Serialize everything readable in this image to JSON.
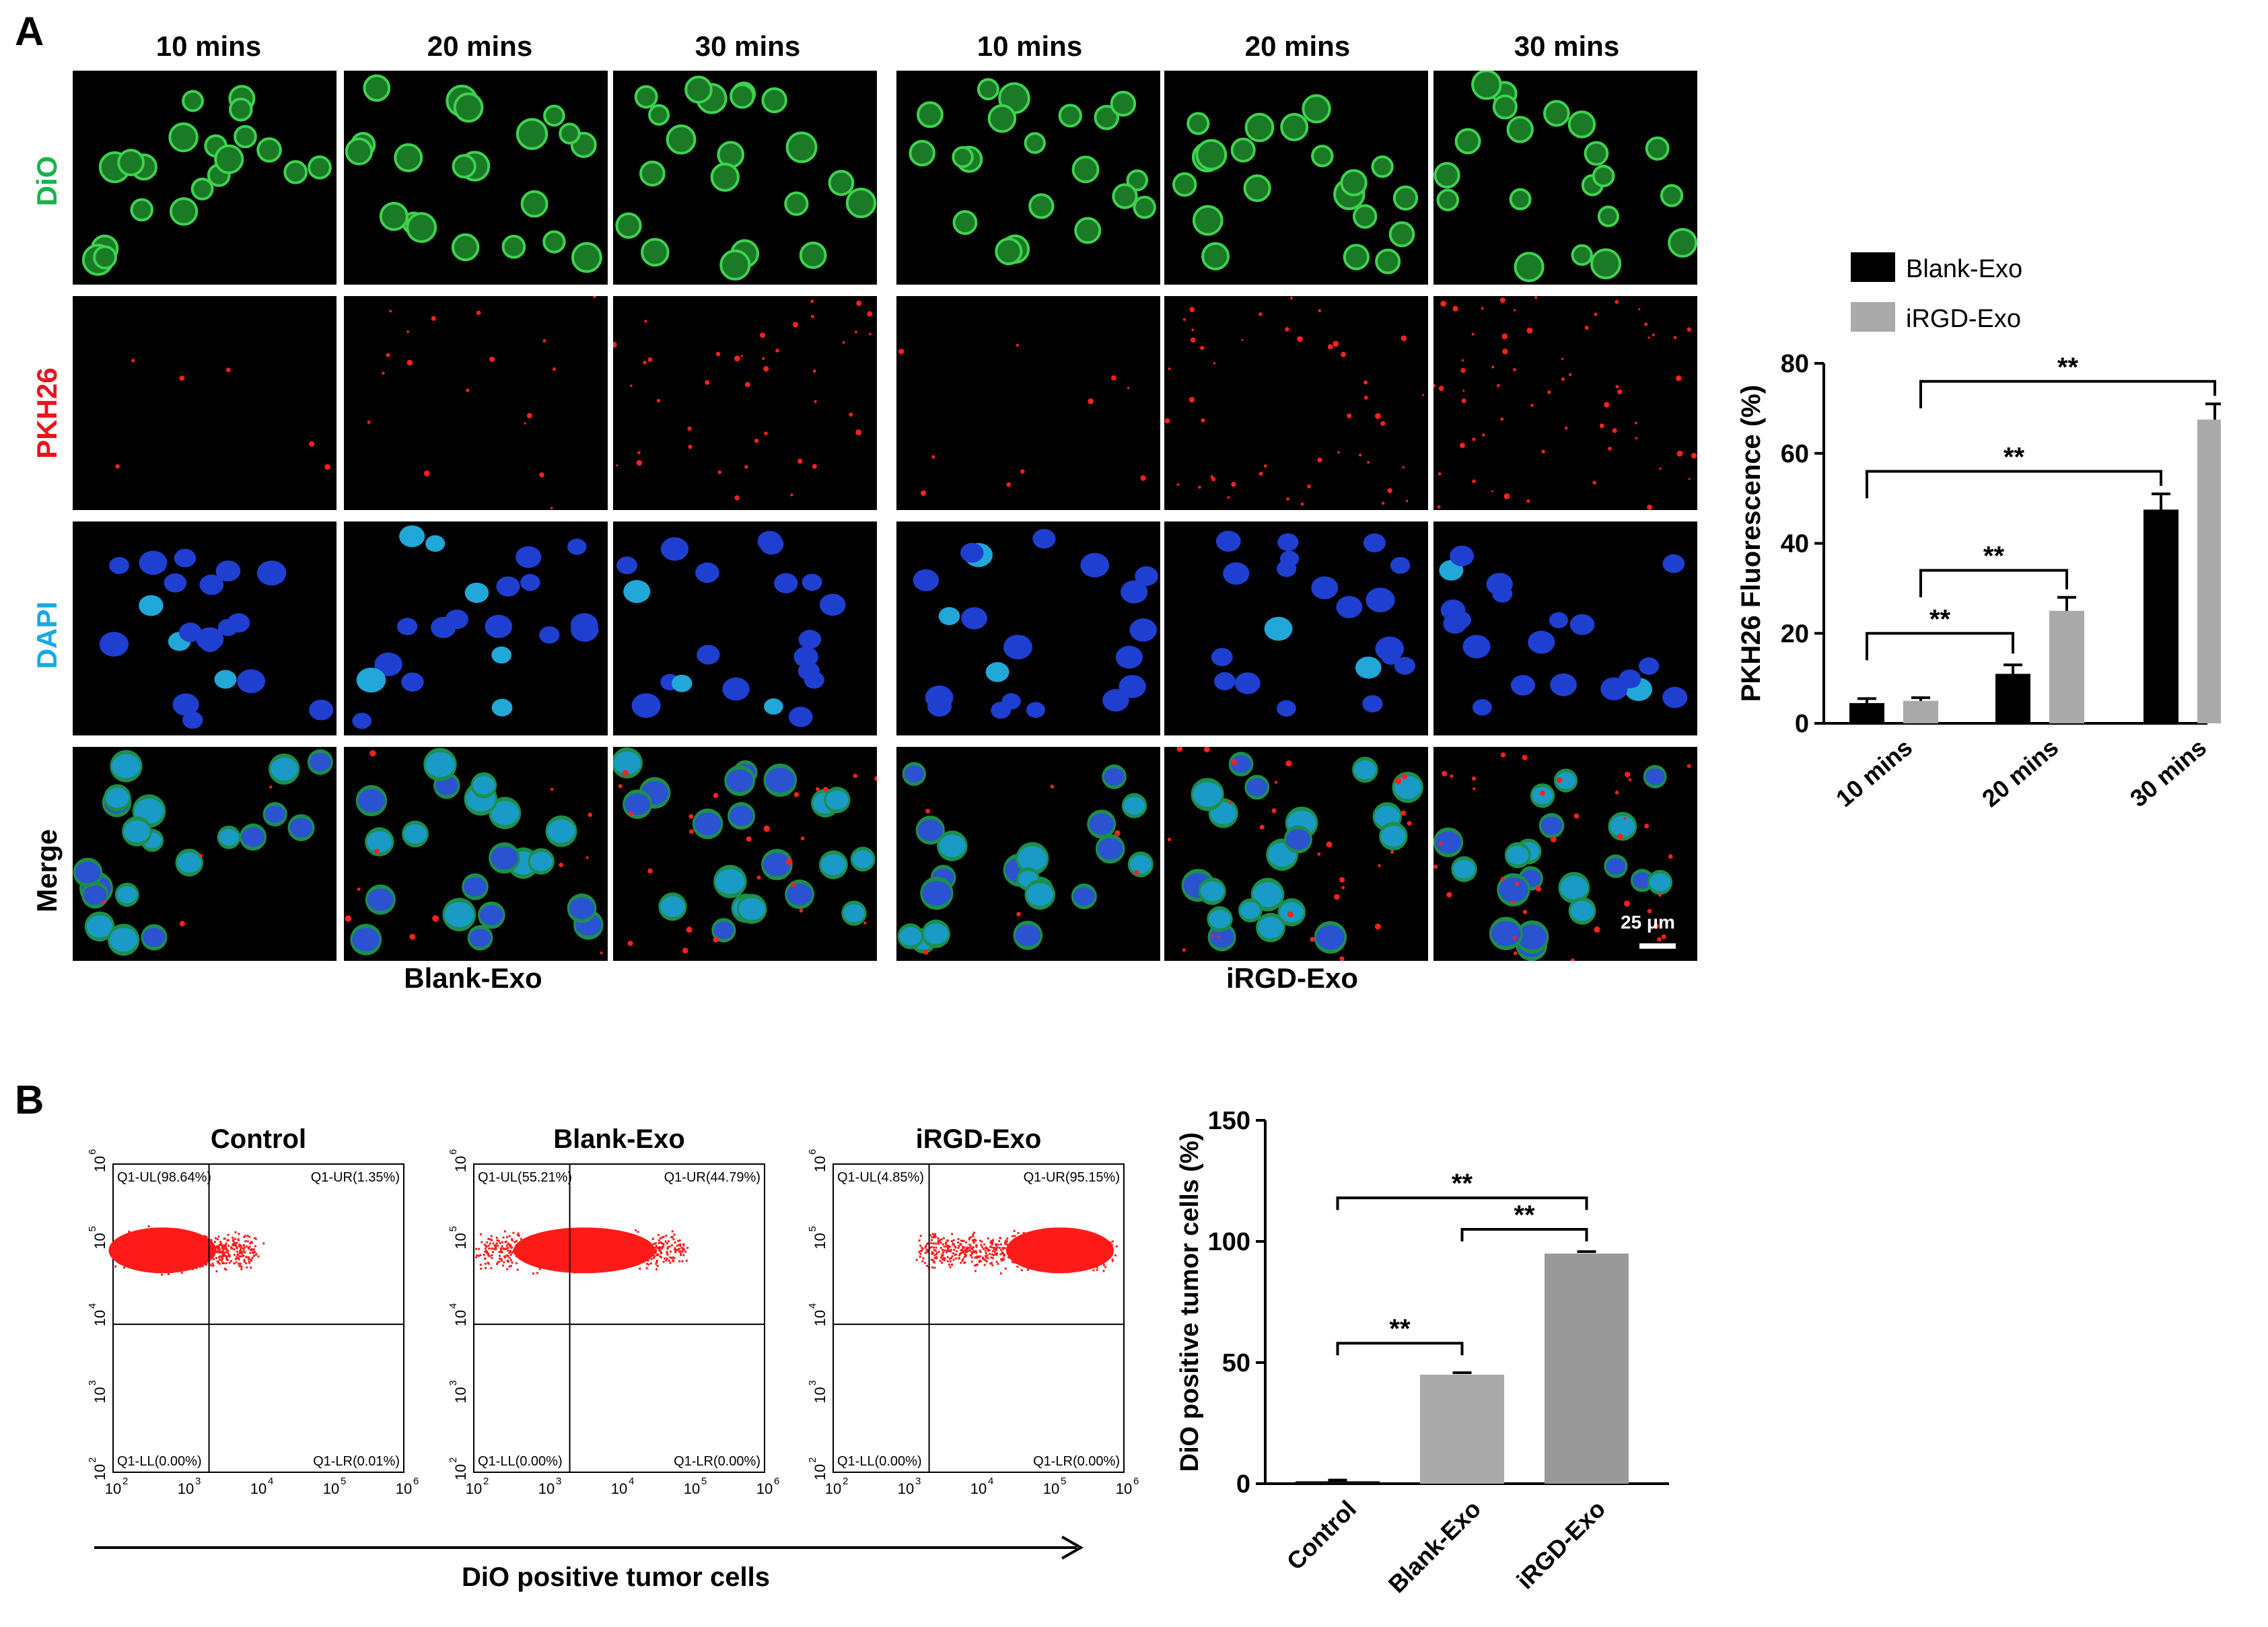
{
  "panel_a": {
    "letter": "A",
    "columns": [
      "10 mins",
      "20 mins",
      "30 mins",
      "10 mins",
      "20 mins",
      "30 mins"
    ],
    "rows": [
      {
        "label": "DiO",
        "color": "#19b34a"
      },
      {
        "label": "PKH26",
        "color": "#e8141c"
      },
      {
        "label": "DAPI",
        "color": "#19a9e6"
      },
      {
        "label": "Merge",
        "color": "#000000"
      }
    ],
    "groups": [
      "Blank-Exo",
      "iRGD-Exo"
    ],
    "scale_bar": "25 μm"
  },
  "panel_b": {
    "letter": "B",
    "flow_titles": [
      "Control",
      "Blank-Exo",
      "iRGD-Exo"
    ],
    "quadrants": [
      {
        "ul": "Q1-UL(98.64%)",
        "ur": "Q1-UR(1.35%)",
        "ll": "Q1-LL(0.00%)",
        "lr": "Q1-LR(0.01%)"
      },
      {
        "ul": "Q1-UL(55.21%)",
        "ur": "Q1-UR(44.79%)",
        "ll": "Q1-LL(0.00%)",
        "lr": "Q1-LR(0.00%)"
      },
      {
        "ul": "Q1-UL(4.85%)",
        "ur": "Q1-UR(95.15%)",
        "ll": "Q1-LL(0.00%)",
        "lr": "Q1-LR(0.00%)"
      }
    ],
    "axis_ticks": [
      "2",
      "3",
      "4",
      "5",
      "6"
    ],
    "axis_base": "10",
    "x_caption": "DiO positive tumor cells"
  },
  "chart_data": [
    {
      "type": "bar",
      "categories": [
        "10 mins",
        "20 mins",
        "30 mins"
      ],
      "series": [
        {
          "name": "Blank-Exo",
          "values": [
            4.5,
            11,
            47.5
          ],
          "errors": [
            1,
            2,
            3.5
          ],
          "color": "#000000"
        },
        {
          "name": "iRGD-Exo",
          "values": [
            5,
            25,
            67.5
          ],
          "errors": [
            0.7,
            3,
            3.5
          ],
          "color": "#aaaaaa"
        }
      ],
      "ylabel": "PKH26 Fluorescence (%)",
      "ylim": [
        0,
        80
      ],
      "yticks": [
        0,
        20,
        40,
        60,
        80
      ],
      "legend_position": "top",
      "significance": [
        "**",
        "**",
        "**",
        "**"
      ]
    },
    {
      "type": "bar",
      "categories": [
        "Control",
        "Blank-Exo",
        "iRGD-Exo"
      ],
      "values": [
        1,
        45,
        95
      ],
      "errors": [
        0.5,
        0.8,
        0.8
      ],
      "colors": [
        "#111111",
        "#aaaaaa",
        "#999999"
      ],
      "ylabel": "DiO positive tumor cells (%)",
      "ylim": [
        0,
        150
      ],
      "yticks": [
        0,
        50,
        100,
        150
      ],
      "significance": [
        "**",
        "**",
        "**"
      ]
    }
  ]
}
